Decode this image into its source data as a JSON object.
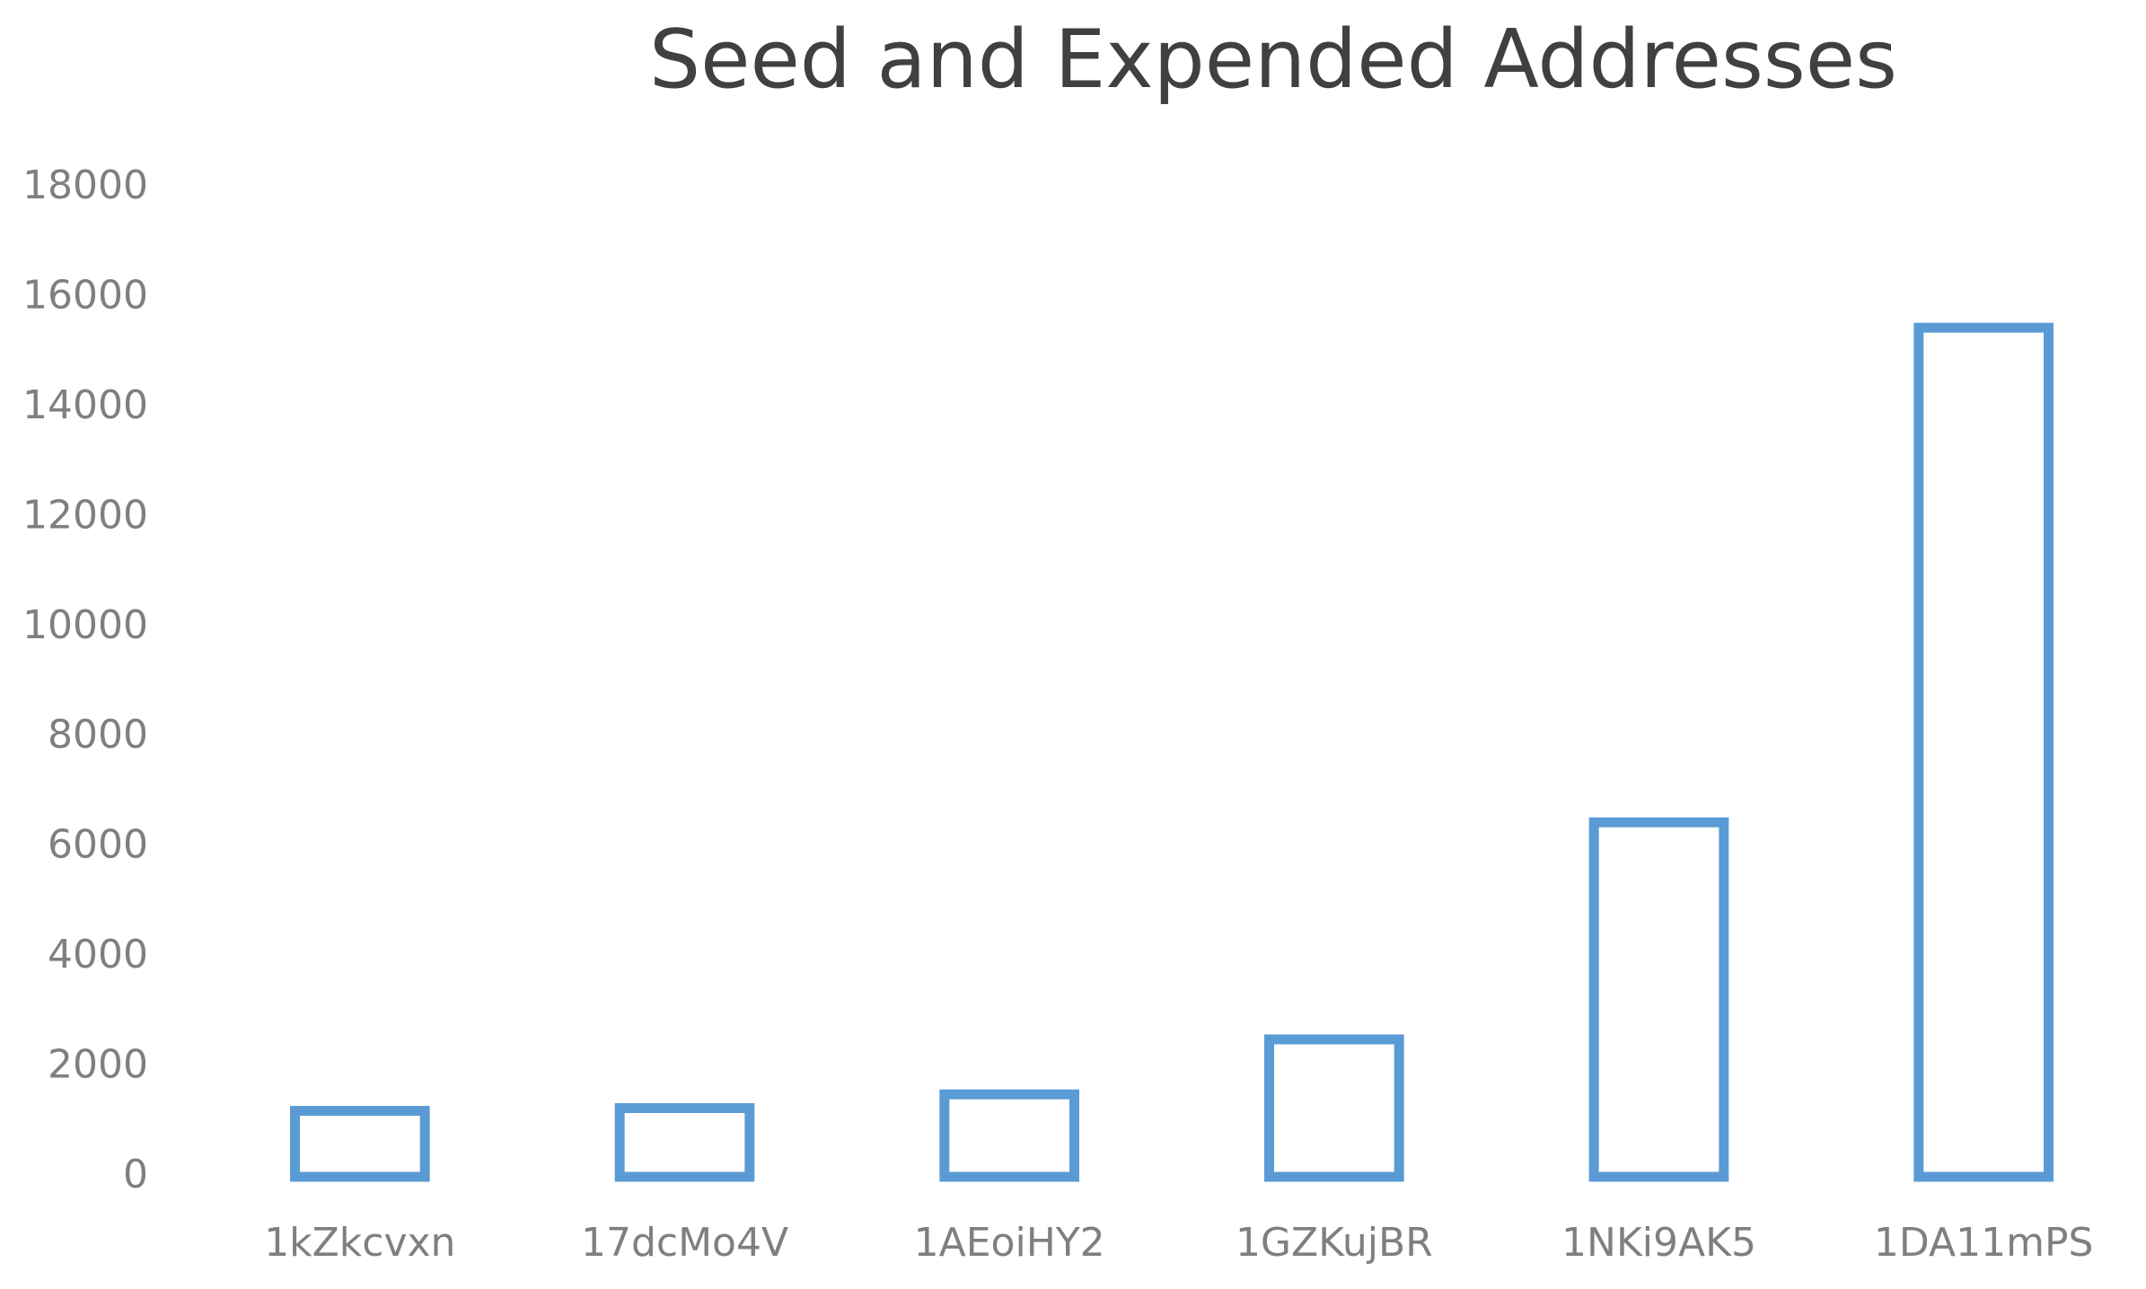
{
  "chart_data": {
    "type": "bar",
    "title": "Seed and Expended Addresses",
    "categories": [
      "1kZkcvxn",
      "17dcMo4V",
      "1AEoiHY2",
      "1GZKujBR",
      "1NKi9AK5",
      "1DA11mPS"
    ],
    "values": [
      1200,
      1250,
      1500,
      2500,
      6450,
      15450
    ],
    "color": "#5b9bd5",
    "ylim": [
      0,
      18000
    ],
    "yticks": [
      0,
      2000,
      4000,
      6000,
      8000,
      10000,
      12000,
      14000,
      16000,
      18000
    ],
    "grid": false
  }
}
